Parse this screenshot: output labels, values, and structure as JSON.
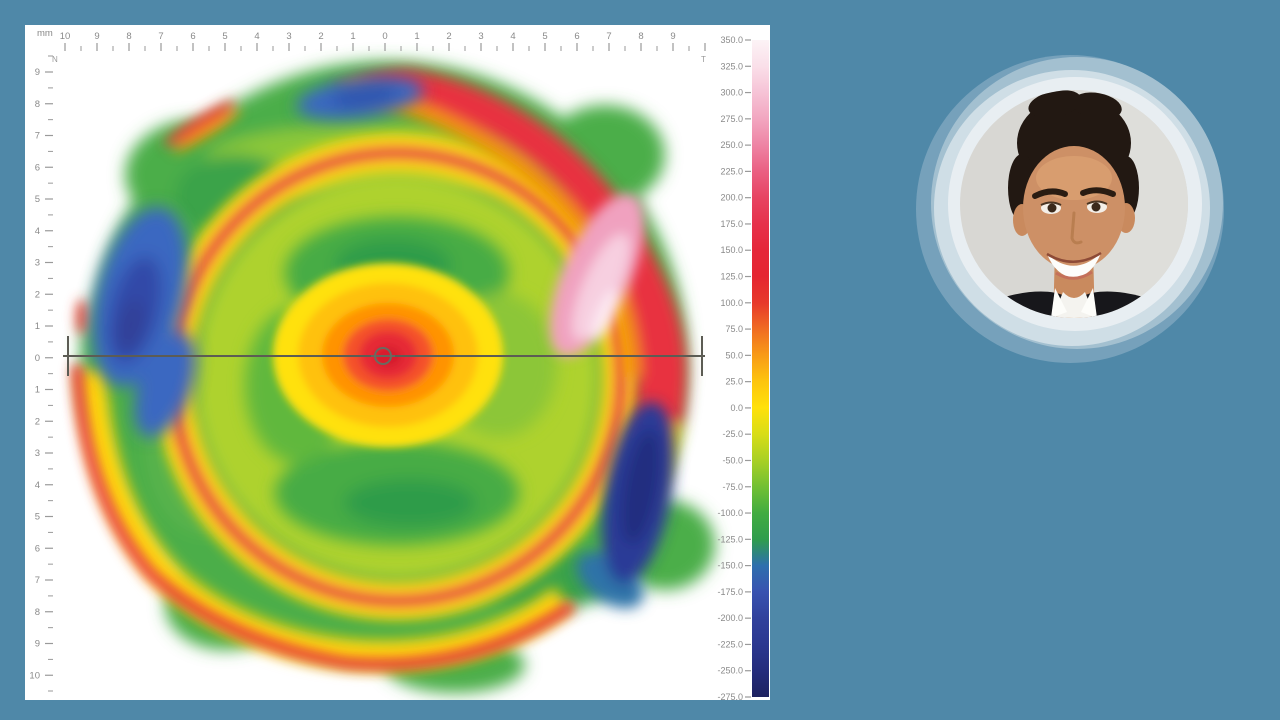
{
  "background_color": "#4f88a8",
  "topo_map": {
    "unit_label": "mm",
    "nasal_marker": "N",
    "temporal_marker": "T",
    "x_ruler_labels": [
      "10",
      "9",
      "8",
      "7",
      "6",
      "5",
      "4",
      "3",
      "2",
      "1",
      "0",
      "1",
      "2",
      "3",
      "4",
      "5",
      "6",
      "7",
      "8",
      "9"
    ],
    "y_ruler_labels": [
      "9",
      "8",
      "7",
      "6",
      "5",
      "4",
      "3",
      "2",
      "1",
      "0",
      "1",
      "2",
      "3",
      "4",
      "5",
      "6",
      "7",
      "8",
      "9",
      "10"
    ],
    "colorbar": {
      "labels": [
        "350.0",
        "325.0",
        "300.0",
        "275.0",
        "250.0",
        "225.0",
        "200.0",
        "175.0",
        "150.0",
        "125.0",
        "100.0",
        "75.0",
        "50.0",
        "25.0",
        "0.0",
        "-25.0",
        "-50.0",
        "-75.0",
        "-100.0",
        "-125.0",
        "-150.0",
        "-175.0",
        "-200.0",
        "-225.0",
        "-250.0",
        "-275.0"
      ],
      "stops": [
        "#fcf3f6",
        "#fadfe9",
        "#f6c3d6",
        "#f2a6c0",
        "#ee84a4",
        "#ea5f82",
        "#e74462",
        "#e6314b",
        "#e52639",
        "#e52531",
        "#e7392a",
        "#f06c22",
        "#f89b17",
        "#fdc50e",
        "#ffe10a",
        "#d8dd17",
        "#a8d024",
        "#72c033",
        "#41ac40",
        "#2f9d4c",
        "#2e6fae",
        "#3852b0",
        "#31419c",
        "#2b3790",
        "#242c7c",
        "#1d2260"
      ]
    }
  },
  "portrait": {
    "ring_colors": [
      "#7da6be",
      "#a3c0d0",
      "#cfdee6",
      "#e8eef2"
    ],
    "photo_bg": "#d8d7d3",
    "skin": "#cd9066",
    "hair": "#221812",
    "jacket": "#17171b",
    "shirt": "#f4f3ef"
  },
  "chart_data": {
    "type": "heatmap",
    "title": "Corneal elevation topography map",
    "xlabel": "mm",
    "ylabel": "mm",
    "x_ticks": [
      10,
      9,
      8,
      7,
      6,
      5,
      4,
      3,
      2,
      1,
      0,
      1,
      2,
      3,
      4,
      5,
      6,
      7,
      8,
      9
    ],
    "y_ticks": [
      9,
      8,
      7,
      6,
      5,
      4,
      3,
      2,
      1,
      0,
      1,
      2,
      3,
      4,
      5,
      6,
      7,
      8,
      9,
      10
    ],
    "orientation_markers": [
      "N",
      "T"
    ],
    "colorbar_ticks": [
      350,
      325,
      300,
      275,
      250,
      225,
      200,
      175,
      150,
      125,
      100,
      75,
      50,
      25,
      0,
      -25,
      -50,
      -75,
      -100,
      -125,
      -150,
      -175,
      -200,
      -225,
      -250,
      -275
    ],
    "colorbar_range": [
      -275,
      350
    ],
    "legend_position": "right",
    "grid": false,
    "map_diameter_mm": 19,
    "features": [
      {
        "region": "central bullseye at (0,0)",
        "value_est": 125
      },
      {
        "region": "paracentral red ring, radius ~5.5 mm",
        "value_est": 150
      },
      {
        "region": "mid annulus inside ring",
        "value_est": -40
      },
      {
        "region": "superior blue depression near (-1,8)",
        "value_est": -200
      },
      {
        "region": "nasal blue depression near (-8,3)",
        "value_est": -225
      },
      {
        "region": "inferotemporal navy crescent near (7,-4)",
        "value_est": -250
      },
      {
        "region": "superotemporal pink zone near (5,4)",
        "value_est": 300
      },
      {
        "region": "peripheral red rim",
        "value_est": 150
      }
    ]
  }
}
